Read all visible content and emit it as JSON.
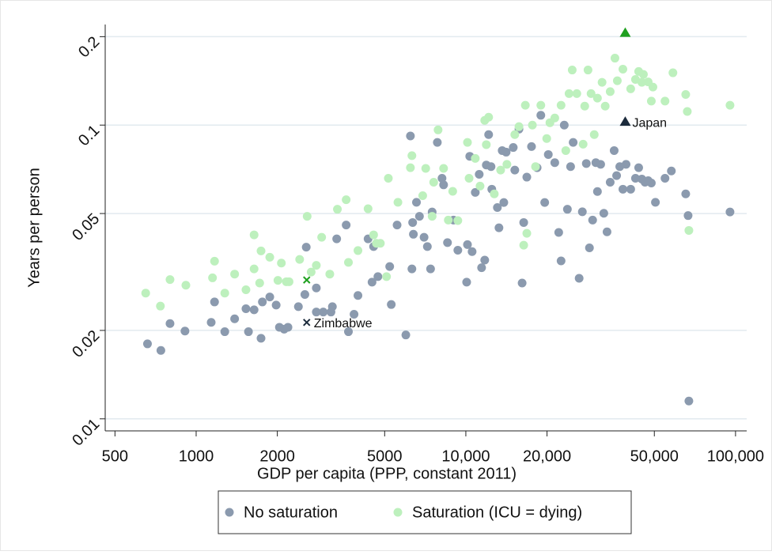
{
  "chart_data": {
    "type": "scatter",
    "xlabel": "GDP per capita (PPP, constant 2011)",
    "ylabel": "Years per person",
    "xscale": "log",
    "yscale": "log",
    "grid": true,
    "xlim": [
      460,
      110000
    ],
    "ylim": [
      0.0091,
      0.22
    ],
    "xticks": [
      500,
      1000,
      2000,
      5000,
      {
        "value": 10000,
        "label": "10,000"
      },
      {
        "value": 20000,
        "label": "20,000"
      },
      {
        "value": 50000,
        "label": "50,000"
      },
      {
        "value": 100000,
        "label": "100,000"
      }
    ],
    "yticks": [
      0.01,
      0.02,
      0.05,
      0.1,
      0.2
    ],
    "series": [
      {
        "name": "No saturation",
        "color": "#8b9aae",
        "x": [
          660,
          740,
          800,
          909,
          1137,
          1170,
          1277,
          1389,
          1563,
          1530,
          1640,
          1740,
          1760,
          1875,
          1980,
          2036,
          2120,
          2190,
          2394,
          2530,
          2560,
          2790,
          2790,
          2960,
          3162,
          3200,
          3320,
          3600,
          3670,
          3850,
          3981,
          4340,
          4490,
          4550,
          4720,
          5220,
          5290,
          5560,
          5990,
          6230,
          6310,
          6350,
          6390,
          6560,
          6730,
          7000,
          7200,
          7400,
          7500,
          7840,
          8160,
          8270,
          8550,
          9000,
          9340,
          10070,
          10140,
          10340,
          10550,
          10840,
          11210,
          11440,
          11750,
          11910,
          12150,
          12400,
          12480,
          13090,
          13270,
          13640,
          13830,
          14110,
          14990,
          15190,
          15740,
          16170,
          16390,
          16830,
          17520,
          18380,
          18970,
          19610,
          20220,
          21370,
          22100,
          22550,
          23170,
          23800,
          24460,
          25000,
          26310,
          27040,
          27970,
          28730,
          29520,
          30340,
          30760,
          31620,
          32480,
          33380,
          34300,
          35480,
          36230,
          37220,
          38230,
          39270,
          40860,
          42560,
          43740,
          44940,
          46170,
          47440,
          48730,
          50460,
          54770,
          57820,
          65360,
          66700,
          67150,
          95400
        ],
        "values": [
          0.018,
          0.0171,
          0.0211,
          0.0199,
          0.0213,
          0.025,
          0.0198,
          0.0219,
          0.0198,
          0.0237,
          0.0235,
          0.0188,
          0.025,
          0.026,
          0.0244,
          0.0205,
          0.0202,
          0.0205,
          0.0241,
          0.0265,
          0.0384,
          0.0231,
          0.0279,
          0.0231,
          0.0231,
          0.0241,
          0.041,
          0.0457,
          0.0198,
          0.0227,
          0.0263,
          0.041,
          0.0292,
          0.0386,
          0.0305,
          0.033,
          0.0245,
          0.0457,
          0.0193,
          0.0918,
          0.0324,
          0.0466,
          0.0425,
          0.0546,
          0.0489,
          0.0415,
          0.0386,
          0.0324,
          0.0506,
          0.0873,
          0.0659,
          0.0626,
          0.0398,
          0.0475,
          0.0375,
          0.0292,
          0.0392,
          0.0783,
          0.0371,
          0.059,
          0.068,
          0.0327,
          0.0347,
          0.0731,
          0.0928,
          0.0722,
          0.0605,
          0.0524,
          0.0447,
          0.0819,
          0.0545,
          0.0809,
          0.0839,
          0.0703,
          0.0969,
          0.029,
          0.0466,
          0.0665,
          0.0845,
          0.0716,
          0.108,
          0.0545,
          0.0794,
          0.0745,
          0.0431,
          0.0345,
          0.1,
          0.0517,
          0.0722,
          0.0873,
          0.0301,
          0.0507,
          0.074,
          0.0382,
          0.0475,
          0.0745,
          0.0594,
          0.0735,
          0.0501,
          0.0433,
          0.0639,
          0.0819,
          0.0673,
          0.0722,
          0.0605,
          0.0735,
          0.0605,
          0.0659,
          0.0716,
          0.0655,
          0.0639,
          0.0647,
          0.0635,
          0.0546,
          0.0659,
          0.0698,
          0.0583,
          0.0492,
          0.0115,
          0.0506
        ]
      },
      {
        "name": "Saturation (ICU = dying)",
        "color": "#bdf0bd",
        "x": [
          650,
          737,
          800,
          916,
          1150,
          1170,
          1277,
          1389,
          1530,
          1640,
          1640,
          1720,
          1740,
          1875,
          2010,
          2070,
          2160,
          2210,
          2420,
          2580,
          2670,
          2790,
          2920,
          3130,
          3340,
          3600,
          3670,
          3981,
          4340,
          4550,
          4660,
          4820,
          5080,
          5160,
          5600,
          6230,
          6310,
          6920,
          7100,
          7500,
          7600,
          7890,
          8270,
          8610,
          8940,
          9340,
          10140,
          10280,
          10840,
          11290,
          11750,
          11910,
          12150,
          12750,
          13460,
          14200,
          15190,
          15740,
          16390,
          16620,
          16830,
          17650,
          18130,
          18970,
          19950,
          20500,
          21370,
          22550,
          23480,
          24140,
          24800,
          25790,
          27220,
          27600,
          28380,
          29130,
          29930,
          30760,
          32000,
          32870,
          34300,
          35720,
          36450,
          38230,
          40860,
          42560,
          43740,
          44940,
          45550,
          47440,
          48730,
          49400,
          54770,
          58600,
          65360,
          66250,
          67150,
          95400
        ],
        "values": [
          0.0268,
          0.0242,
          0.0298,
          0.0285,
          0.0302,
          0.0344,
          0.0268,
          0.0311,
          0.0275,
          0.0423,
          0.0324,
          0.029,
          0.0373,
          0.0355,
          0.0296,
          0.0339,
          0.0293,
          0.0293,
          0.0349,
          0.0489,
          0.0316,
          0.0333,
          0.0415,
          0.0311,
          0.0517,
          0.0557,
          0.0341,
          0.0374,
          0.0519,
          0.0423,
          0.0396,
          0.0396,
          0.0305,
          0.0659,
          0.0546,
          0.0716,
          0.0787,
          0.0575,
          0.0712,
          0.0489,
          0.0639,
          0.0963,
          0.0712,
          0.0475,
          0.0595,
          0.0473,
          0.0873,
          0.0659,
          0.077,
          0.062,
          0.1038,
          0.0858,
          0.1064,
          0.0583,
          0.0703,
          0.0735,
          0.0928,
          0.0988,
          0.039,
          0.1168,
          0.0428,
          0.1,
          0.0722,
          0.1168,
          0.09,
          0.1019,
          0.1057,
          0.1168,
          0.0819,
          0.128,
          0.154,
          0.128,
          0.0861,
          0.116,
          0.154,
          0.128,
          0.0928,
          0.1235,
          0.1398,
          0.116,
          0.13,
          0.169,
          0.1416,
          0.155,
          0.1329,
          0.143,
          0.1523,
          0.1398,
          0.1488,
          0.1403,
          0.1207,
          0.1347,
          0.1207,
          0.1507,
          0.1271,
          0.1113,
          0.0438,
          0.1168
        ]
      }
    ],
    "annotations": [
      {
        "text": "Japan",
        "marker": "triangle",
        "x": 39000,
        "values": [
          0.1026,
          0.206
        ],
        "colors": [
          "#1c2b3c",
          "#1fa01f"
        ],
        "text_color": "#2f5375"
      },
      {
        "text": "Zimbabwe",
        "marker": "cross",
        "x": 2570,
        "values": [
          0.0213,
          0.0297
        ],
        "colors": [
          "#1c2b3c",
          "#1fa01f"
        ],
        "text_color": "#2f5375"
      }
    ]
  }
}
